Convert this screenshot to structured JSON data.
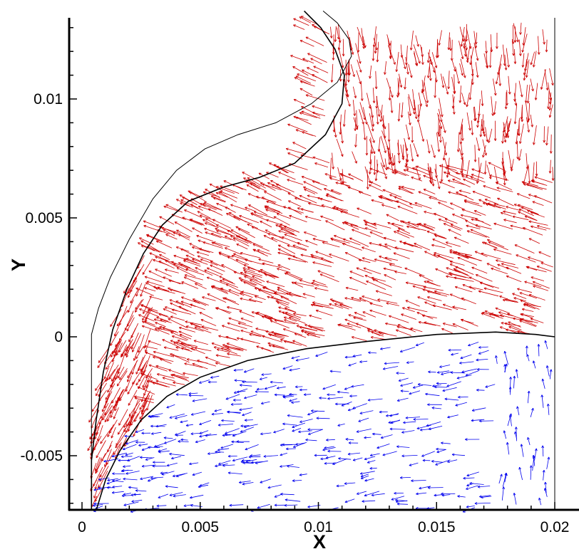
{
  "chart_data": {
    "type": "vector-field",
    "xlabel": "X",
    "ylabel": "Y",
    "xlim": [
      0,
      0.02
    ],
    "ylim": [
      -0.0073,
      0.0133
    ],
    "x_ticks": [
      0,
      0.005,
      0.01,
      0.015,
      0.02
    ],
    "x_tick_labels": [
      "0",
      "0.005",
      "0.01",
      "0.015",
      "0.02"
    ],
    "y_ticks": [
      -0.005,
      0,
      0.005,
      0.01
    ],
    "y_tick_labels": [
      "-0.005",
      "0",
      "0.005",
      "0.01"
    ],
    "grid": false,
    "colors": {
      "red_vectors": "#cc0000",
      "blue_vectors": "#0000ee",
      "boundary": "#000000"
    },
    "series": [
      {
        "role": "outer-boundary-curve",
        "color": "#000000",
        "points": [
          [
            0.0004,
            -0.0073
          ],
          [
            0.0004,
            0.0001
          ],
          [
            0.0007,
            0.0012
          ],
          [
            0.0012,
            0.0025
          ],
          [
            0.002,
            0.0041
          ],
          [
            0.003,
            0.0058
          ],
          [
            0.004,
            0.007
          ],
          [
            0.0052,
            0.0079
          ],
          [
            0.0066,
            0.0085
          ],
          [
            0.0082,
            0.009
          ],
          [
            0.0097,
            0.0098
          ],
          [
            0.0108,
            0.0107
          ],
          [
            0.0114,
            0.0118
          ],
          [
            0.0113,
            0.0125
          ],
          [
            0.0108,
            0.0132
          ],
          [
            0.0102,
            0.0137
          ]
        ]
      },
      {
        "role": "upper-interface-curve",
        "color": "#000000",
        "points": [
          [
            0.0004,
            -0.0073
          ],
          [
            0.0004,
            -0.0052
          ],
          [
            0.0006,
            -0.0035
          ],
          [
            0.0009,
            -0.0015
          ],
          [
            0.0013,
            0.0003
          ],
          [
            0.0019,
            0.002
          ],
          [
            0.0026,
            0.0035
          ],
          [
            0.0034,
            0.0047
          ],
          [
            0.0045,
            0.0057
          ],
          [
            0.006,
            0.0063
          ],
          [
            0.0075,
            0.0067
          ],
          [
            0.009,
            0.0073
          ],
          [
            0.0103,
            0.0085
          ],
          [
            0.011,
            0.0098
          ],
          [
            0.0111,
            0.011
          ],
          [
            0.0107,
            0.0121
          ],
          [
            0.0101,
            0.013
          ],
          [
            0.0094,
            0.0137
          ]
        ]
      },
      {
        "role": "lower-interface-curve",
        "color": "#000000",
        "points": [
          [
            0.0006,
            -0.0073
          ],
          [
            0.001,
            -0.006
          ],
          [
            0.0016,
            -0.0048
          ],
          [
            0.0025,
            -0.0035
          ],
          [
            0.0036,
            -0.0025
          ],
          [
            0.005,
            -0.0017
          ],
          [
            0.007,
            -0.001
          ],
          [
            0.0095,
            -0.0005
          ],
          [
            0.012,
            -0.0002
          ],
          [
            0.015,
            0.0001
          ],
          [
            0.0175,
            0.0002
          ],
          [
            0.0192,
            0.0001
          ],
          [
            0.02,
            0.0
          ]
        ]
      }
    ],
    "vector_fields": [
      {
        "name": "",
        "color": "#cc0000",
        "region": "between upper and lower interface curves",
        "description": "dense arrows flowing leftward and downward"
      },
      {
        "name": "",
        "color": "#0000ee",
        "region": "below lower interface curve",
        "description": "sparser arrows, mostly leftward recirculation"
      }
    ]
  }
}
